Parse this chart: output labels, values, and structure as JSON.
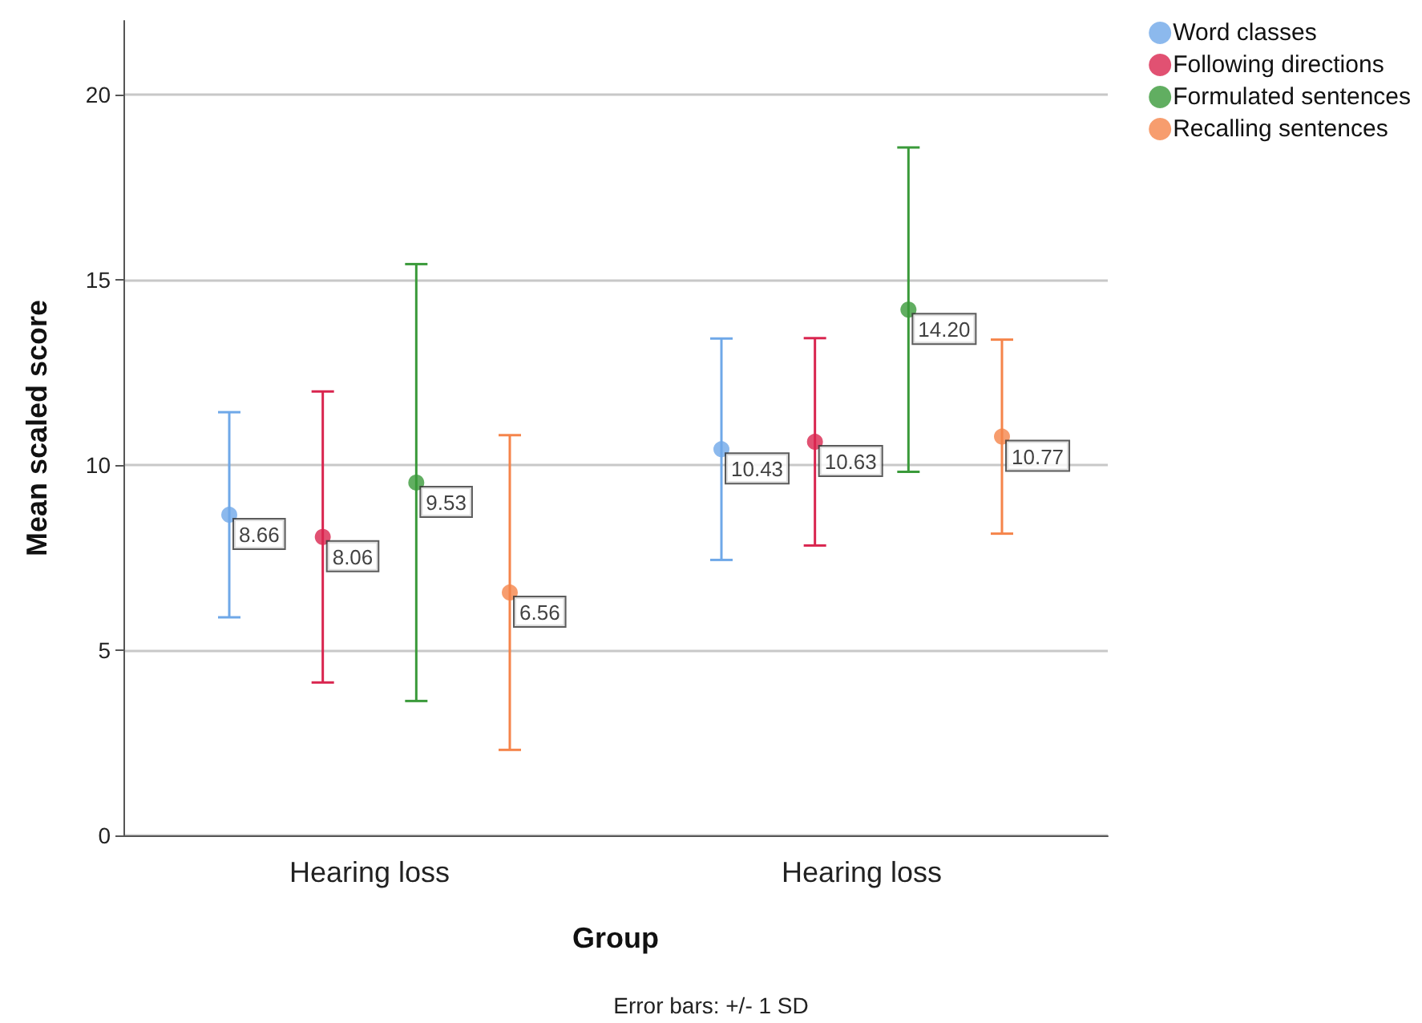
{
  "chart_data": {
    "type": "scatter",
    "xlabel": "Group",
    "ylabel": "Mean scaled score",
    "categories": [
      "Hearing loss",
      "Hearing loss"
    ],
    "series": [
      {
        "name": "Word classes",
        "color": "#6fa8e8",
        "values": [
          8.66,
          10.43
        ],
        "errors": [
          2.77,
          2.99
        ],
        "value_labels": [
          "8.66",
          "10.43"
        ]
      },
      {
        "name": "Following directions",
        "color": "#d9254f",
        "values": [
          8.06,
          10.63
        ],
        "errors": [
          3.93,
          2.8
        ],
        "value_labels": [
          "8.06",
          "10.63"
        ]
      },
      {
        "name": "Formulated sentences",
        "color": "#3a9a3a",
        "values": [
          9.53,
          14.2
        ],
        "errors": [
          5.9,
          4.38
        ],
        "value_labels": [
          "9.53",
          "14.20"
        ]
      },
      {
        "name": "Recalling sentences",
        "color": "#f5844a",
        "values": [
          6.56,
          10.77
        ],
        "errors": [
          4.25,
          2.62
        ],
        "value_labels": [
          "6.56",
          "10.77"
        ]
      }
    ],
    "ylim": [
      0,
      22
    ],
    "yticks": [
      0,
      5,
      10,
      15,
      20
    ],
    "grid": "y",
    "legend": "top right",
    "marker": "circle",
    "annotations": [
      "Error bars: +/- 1 SD"
    ]
  }
}
